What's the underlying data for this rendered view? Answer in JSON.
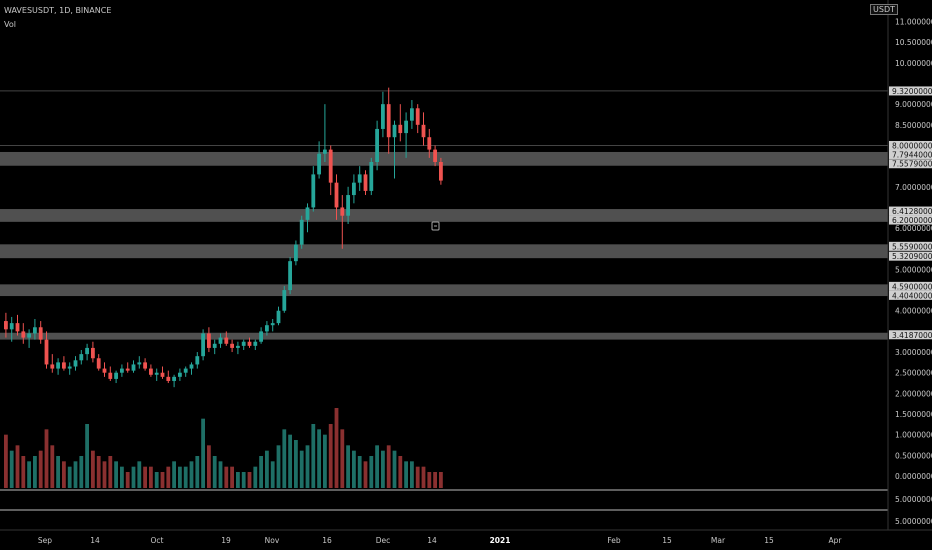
{
  "header": {
    "symbol_line": "WAVESUSDT, 1D, BINANCE",
    "indicator": "Vol",
    "currency_badge": "USDT"
  },
  "colors": {
    "background": "#000000",
    "up": "#26a69a",
    "down": "#ef5350",
    "up_volume": "#1e6f66",
    "down_volume": "#8a3030",
    "zone": "#6b6b6b",
    "axis_text": "#c8c8c8"
  },
  "chart_data": {
    "type": "candlestick",
    "price_axis": {
      "ticks": [
        "11.00000000",
        "10.50000000",
        "10.00000000",
        "9.00000000",
        "8.50000000",
        "7.00000000",
        "6.00000000",
        "5.00000000",
        "4.00000000",
        "3.00000000",
        "2.50000000",
        "2.00000000",
        "1.50000000",
        "1.00000000",
        "0.50000000",
        "0.00000000"
      ],
      "tick_values": [
        11,
        10.5,
        10,
        9,
        8.5,
        7,
        6,
        5,
        4,
        3,
        2.5,
        2,
        1.5,
        1,
        0.5,
        0
      ],
      "ylim": [
        0,
        11.4
      ],
      "highlighted_labels": [
        {
          "text": "9.32000000",
          "value": 9.32
        },
        {
          "text": "8.00000000",
          "value": 8.0
        },
        {
          "text": "7.79440000",
          "value": 7.7944
        },
        {
          "text": "7.55790000",
          "value": 7.5579
        },
        {
          "text": "6.41280000",
          "value": 6.4128
        },
        {
          "text": "6.20000000",
          "value": 6.2
        },
        {
          "text": "5.55900000",
          "value": 5.559
        },
        {
          "text": "5.32090000",
          "value": 5.3209
        },
        {
          "text": "4.59000000",
          "value": 4.59
        },
        {
          "text": "4.40400000",
          "value": 4.404
        },
        {
          "text": "3.41870000",
          "value": 3.4187
        }
      ]
    },
    "volume_axis": {
      "ticks": [
        "5.00000000",
        "5.00000000"
      ]
    },
    "time_axis": {
      "labels": [
        "Sep",
        "14",
        "Oct",
        "19",
        "Nov",
        "16",
        "Dec",
        "14",
        "2021",
        "Feb",
        "15",
        "Mar",
        "15",
        "Apr"
      ],
      "bold_label": "2021"
    },
    "support_resistance_zones": [
      {
        "low": 7.5579,
        "high": 7.7944
      },
      {
        "low": 6.2,
        "high": 6.4128
      },
      {
        "low": 5.3209,
        "high": 5.559
      },
      {
        "low": 4.404,
        "high": 4.59
      },
      {
        "low": 3.35,
        "high": 3.4187
      }
    ],
    "horizontal_lines": [
      9.32,
      8.0
    ],
    "candles": [
      {
        "o": 3.75,
        "h": 3.95,
        "l": 3.35,
        "c": 3.55,
        "v": 1.0
      },
      {
        "o": 3.55,
        "h": 3.85,
        "l": 3.25,
        "c": 3.7,
        "v": 0.7
      },
      {
        "o": 3.7,
        "h": 3.9,
        "l": 3.4,
        "c": 3.5,
        "v": 0.8
      },
      {
        "o": 3.5,
        "h": 3.7,
        "l": 3.2,
        "c": 3.35,
        "v": 0.6
      },
      {
        "o": 3.35,
        "h": 3.55,
        "l": 3.1,
        "c": 3.45,
        "v": 0.5
      },
      {
        "o": 3.45,
        "h": 3.8,
        "l": 3.3,
        "c": 3.6,
        "v": 0.6
      },
      {
        "o": 3.6,
        "h": 3.75,
        "l": 3.2,
        "c": 3.3,
        "v": 0.7
      },
      {
        "o": 3.3,
        "h": 3.5,
        "l": 2.6,
        "c": 2.7,
        "v": 1.1
      },
      {
        "o": 2.7,
        "h": 2.95,
        "l": 2.5,
        "c": 2.6,
        "v": 0.8
      },
      {
        "o": 2.6,
        "h": 2.85,
        "l": 2.45,
        "c": 2.75,
        "v": 0.6
      },
      {
        "o": 2.75,
        "h": 2.9,
        "l": 2.55,
        "c": 2.6,
        "v": 0.5
      },
      {
        "o": 2.6,
        "h": 2.75,
        "l": 2.45,
        "c": 2.65,
        "v": 0.4
      },
      {
        "o": 2.65,
        "h": 2.9,
        "l": 2.55,
        "c": 2.8,
        "v": 0.5
      },
      {
        "o": 2.8,
        "h": 3.05,
        "l": 2.7,
        "c": 2.95,
        "v": 0.6
      },
      {
        "o": 2.95,
        "h": 3.2,
        "l": 2.8,
        "c": 3.1,
        "v": 1.2
      },
      {
        "o": 3.1,
        "h": 3.25,
        "l": 2.75,
        "c": 2.85,
        "v": 0.7
      },
      {
        "o": 2.85,
        "h": 2.95,
        "l": 2.55,
        "c": 2.6,
        "v": 0.6
      },
      {
        "o": 2.6,
        "h": 2.75,
        "l": 2.4,
        "c": 2.5,
        "v": 0.5
      },
      {
        "o": 2.5,
        "h": 2.65,
        "l": 2.3,
        "c": 2.35,
        "v": 0.6
      },
      {
        "o": 2.35,
        "h": 2.55,
        "l": 2.25,
        "c": 2.5,
        "v": 0.5
      },
      {
        "o": 2.5,
        "h": 2.7,
        "l": 2.4,
        "c": 2.6,
        "v": 0.4
      },
      {
        "o": 2.6,
        "h": 2.75,
        "l": 2.5,
        "c": 2.55,
        "v": 0.3
      },
      {
        "o": 2.55,
        "h": 2.8,
        "l": 2.5,
        "c": 2.7,
        "v": 0.4
      },
      {
        "o": 2.7,
        "h": 2.9,
        "l": 2.6,
        "c": 2.75,
        "v": 0.5
      },
      {
        "o": 2.75,
        "h": 2.85,
        "l": 2.55,
        "c": 2.6,
        "v": 0.4
      },
      {
        "o": 2.6,
        "h": 2.7,
        "l": 2.4,
        "c": 2.45,
        "v": 0.4
      },
      {
        "o": 2.45,
        "h": 2.6,
        "l": 2.3,
        "c": 2.5,
        "v": 0.3
      },
      {
        "o": 2.5,
        "h": 2.65,
        "l": 2.35,
        "c": 2.4,
        "v": 0.3
      },
      {
        "o": 2.4,
        "h": 2.55,
        "l": 2.25,
        "c": 2.3,
        "v": 0.4
      },
      {
        "o": 2.3,
        "h": 2.45,
        "l": 2.15,
        "c": 2.4,
        "v": 0.5
      },
      {
        "o": 2.4,
        "h": 2.6,
        "l": 2.3,
        "c": 2.5,
        "v": 0.4
      },
      {
        "o": 2.5,
        "h": 2.65,
        "l": 2.4,
        "c": 2.6,
        "v": 0.4
      },
      {
        "o": 2.6,
        "h": 2.75,
        "l": 2.45,
        "c": 2.7,
        "v": 0.5
      },
      {
        "o": 2.7,
        "h": 3.0,
        "l": 2.6,
        "c": 2.9,
        "v": 0.6
      },
      {
        "o": 2.9,
        "h": 3.55,
        "l": 2.8,
        "c": 3.45,
        "v": 1.3
      },
      {
        "o": 3.45,
        "h": 3.6,
        "l": 3.0,
        "c": 3.1,
        "v": 0.8
      },
      {
        "o": 3.1,
        "h": 3.3,
        "l": 2.95,
        "c": 3.2,
        "v": 0.6
      },
      {
        "o": 3.2,
        "h": 3.45,
        "l": 3.1,
        "c": 3.35,
        "v": 0.5
      },
      {
        "o": 3.35,
        "h": 3.5,
        "l": 3.15,
        "c": 3.2,
        "v": 0.4
      },
      {
        "o": 3.2,
        "h": 3.3,
        "l": 3.0,
        "c": 3.1,
        "v": 0.4
      },
      {
        "o": 3.1,
        "h": 3.25,
        "l": 2.95,
        "c": 3.15,
        "v": 0.3
      },
      {
        "o": 3.15,
        "h": 3.3,
        "l": 3.05,
        "c": 3.25,
        "v": 0.3
      },
      {
        "o": 3.25,
        "h": 3.35,
        "l": 3.1,
        "c": 3.15,
        "v": 0.3
      },
      {
        "o": 3.15,
        "h": 3.3,
        "l": 3.05,
        "c": 3.25,
        "v": 0.4
      },
      {
        "o": 3.25,
        "h": 3.6,
        "l": 3.2,
        "c": 3.5,
        "v": 0.6
      },
      {
        "o": 3.5,
        "h": 3.75,
        "l": 3.4,
        "c": 3.65,
        "v": 0.7
      },
      {
        "o": 3.65,
        "h": 3.8,
        "l": 3.5,
        "c": 3.7,
        "v": 0.5
      },
      {
        "o": 3.7,
        "h": 4.1,
        "l": 3.65,
        "c": 4.0,
        "v": 0.8
      },
      {
        "o": 4.0,
        "h": 4.6,
        "l": 3.95,
        "c": 4.5,
        "v": 1.1
      },
      {
        "o": 4.5,
        "h": 5.3,
        "l": 4.4,
        "c": 5.2,
        "v": 1.0
      },
      {
        "o": 5.2,
        "h": 5.7,
        "l": 5.1,
        "c": 5.6,
        "v": 0.9
      },
      {
        "o": 5.6,
        "h": 6.3,
        "l": 5.5,
        "c": 6.2,
        "v": 0.7
      },
      {
        "o": 6.2,
        "h": 6.6,
        "l": 5.9,
        "c": 6.5,
        "v": 0.8
      },
      {
        "o": 6.5,
        "h": 7.5,
        "l": 6.4,
        "c": 7.3,
        "v": 1.2
      },
      {
        "o": 7.3,
        "h": 8.1,
        "l": 7.2,
        "c": 7.8,
        "v": 1.1
      },
      {
        "o": 7.8,
        "h": 9.0,
        "l": 7.6,
        "c": 7.9,
        "v": 1.0
      },
      {
        "o": 7.9,
        "h": 8.0,
        "l": 6.8,
        "c": 7.1,
        "v": 1.2
      },
      {
        "o": 7.1,
        "h": 7.3,
        "l": 6.2,
        "c": 6.5,
        "v": 1.5
      },
      {
        "o": 6.5,
        "h": 6.8,
        "l": 5.5,
        "c": 6.3,
        "v": 1.1
      },
      {
        "o": 6.3,
        "h": 7.0,
        "l": 6.1,
        "c": 6.8,
        "v": 0.8
      },
      {
        "o": 6.8,
        "h": 7.3,
        "l": 6.6,
        "c": 7.1,
        "v": 0.7
      },
      {
        "o": 7.1,
        "h": 7.5,
        "l": 6.9,
        "c": 7.3,
        "v": 0.6
      },
      {
        "o": 7.3,
        "h": 7.4,
        "l": 6.8,
        "c": 6.9,
        "v": 0.5
      },
      {
        "o": 6.9,
        "h": 7.7,
        "l": 6.8,
        "c": 7.6,
        "v": 0.6
      },
      {
        "o": 7.6,
        "h": 8.6,
        "l": 7.4,
        "c": 8.4,
        "v": 0.8
      },
      {
        "o": 8.4,
        "h": 9.3,
        "l": 8.2,
        "c": 9.0,
        "v": 0.7
      },
      {
        "o": 9.0,
        "h": 9.4,
        "l": 7.8,
        "c": 8.2,
        "v": 0.8
      },
      {
        "o": 8.2,
        "h": 8.6,
        "l": 7.2,
        "c": 8.5,
        "v": 0.7
      },
      {
        "o": 8.5,
        "h": 9.0,
        "l": 8.1,
        "c": 8.3,
        "v": 0.6
      },
      {
        "o": 8.3,
        "h": 8.8,
        "l": 7.7,
        "c": 8.6,
        "v": 0.5
      },
      {
        "o": 8.6,
        "h": 9.1,
        "l": 8.4,
        "c": 8.9,
        "v": 0.5
      },
      {
        "o": 8.9,
        "h": 9.0,
        "l": 8.3,
        "c": 8.5,
        "v": 0.4
      },
      {
        "o": 8.5,
        "h": 8.8,
        "l": 8.0,
        "c": 8.2,
        "v": 0.4
      },
      {
        "o": 8.2,
        "h": 8.4,
        "l": 7.7,
        "c": 7.9,
        "v": 0.3
      },
      {
        "o": 7.9,
        "h": 8.0,
        "l": 7.5,
        "c": 7.6,
        "v": 0.3
      },
      {
        "o": 7.6,
        "h": 7.7,
        "l": 7.05,
        "c": 7.15,
        "v": 0.3
      }
    ]
  }
}
